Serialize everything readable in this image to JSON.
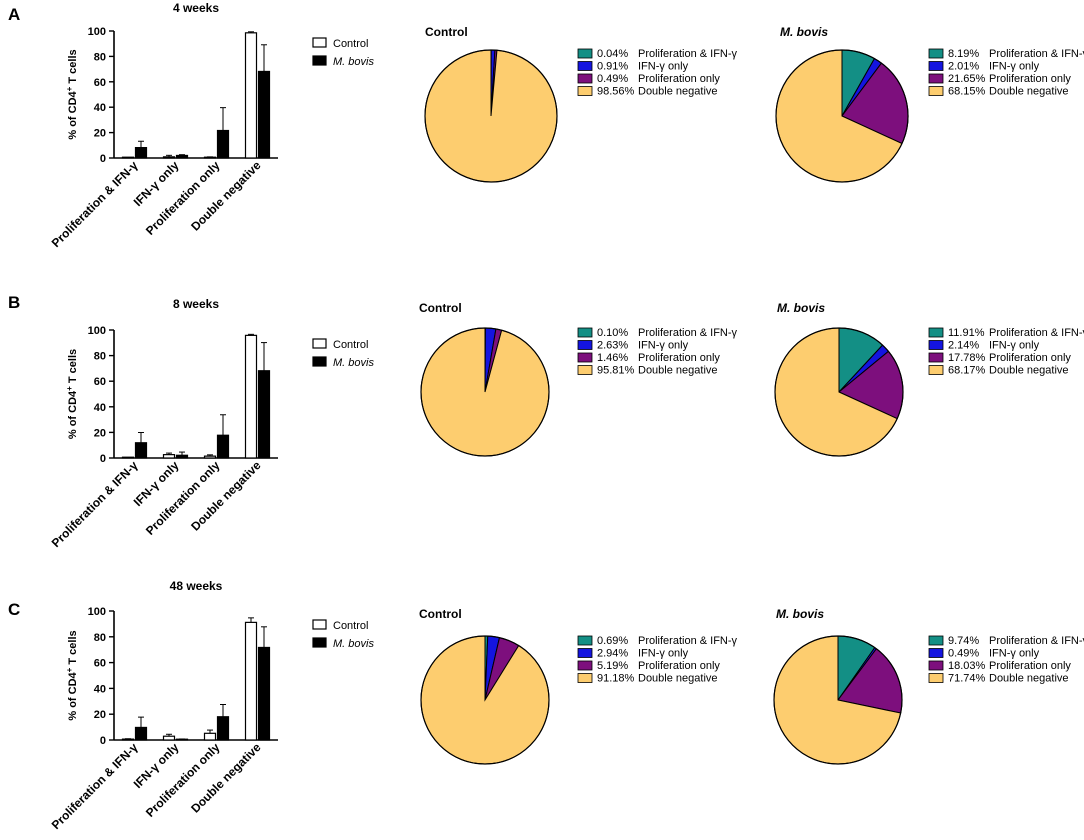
{
  "colors": {
    "control_bar": "#ffffff",
    "mbovis_bar": "#000000",
    "prolif_ifn": "#138f85",
    "ifn_only": "#1414e0",
    "prolif_only": "#7d0f7d",
    "double_neg": "#fdcd6f"
  },
  "chart_data": [
    {
      "panel": "A",
      "type": "bar",
      "title": "4 weeks",
      "ylabel": "% of CD4+ T cells",
      "ylabel_main": "% of CD4",
      "ylabel_sup": "+",
      "ylabel_tail": " T cells",
      "ylim": [
        0,
        100
      ],
      "yticks": [
        "0",
        "20",
        "40",
        "60",
        "80",
        "100"
      ],
      "categories": [
        "Proliferation & IFN-γ",
        "IFN-γ only",
        "Proliferation only",
        "Double negative"
      ],
      "series": [
        {
          "name": "Control",
          "values": [
            0.04,
            0.91,
            0.49,
            98.56
          ],
          "errors": [
            0.1,
            1.2,
            0.4,
            0.8
          ]
        },
        {
          "name": "M. bovis",
          "values": [
            8.19,
            2.01,
            21.65,
            68.15
          ],
          "errors": [
            5,
            0.6,
            18,
            21
          ]
        }
      ],
      "legend": [
        "Control",
        "M. bovis"
      ]
    },
    {
      "panel": "A",
      "type": "pie",
      "title": "Control",
      "labels": [
        "Proliferation & IFN-γ",
        "IFN-γ only",
        "Proliferation only",
        "Double negative"
      ],
      "values": [
        0.04,
        0.91,
        0.49,
        98.56
      ],
      "percent_labels": [
        "0.04%",
        "0.91%",
        "0.49%",
        "98.56%"
      ]
    },
    {
      "panel": "A",
      "type": "pie",
      "title": "M. bovis",
      "labels": [
        "Proliferation & IFN-γ",
        "IFN-γ only",
        "Proliferation only",
        "Double negative"
      ],
      "values": [
        8.19,
        2.01,
        21.65,
        68.15
      ],
      "percent_labels": [
        "8.19%",
        "2.01%",
        "21.65%",
        "68.15%"
      ]
    },
    {
      "panel": "B",
      "type": "bar",
      "title": "8 weeks",
      "ylabel": "% of CD4+ T cells",
      "ylabel_main": "% of CD4",
      "ylabel_sup": "+",
      "ylabel_tail": " T cells",
      "ylim": [
        0,
        100
      ],
      "yticks": [
        "0",
        "20",
        "40",
        "60",
        "80",
        "100"
      ],
      "categories": [
        "Proliferation & IFN-γ",
        "IFN-γ only",
        "Proliferation only",
        "Double negative"
      ],
      "series": [
        {
          "name": "Control",
          "values": [
            0.1,
            2.63,
            1.46,
            95.81
          ],
          "errors": [
            0.1,
            1.2,
            1,
            0.8
          ]
        },
        {
          "name": "M. bovis",
          "values": [
            11.91,
            2.14,
            17.78,
            68.17
          ],
          "errors": [
            8,
            2.5,
            16,
            22
          ]
        }
      ],
      "legend": [
        "Control",
        "M. bovis"
      ]
    },
    {
      "panel": "B",
      "type": "pie",
      "title": "Control",
      "labels": [
        "Proliferation & IFN-γ",
        "IFN-γ only",
        "Proliferation only",
        "Double negative"
      ],
      "values": [
        0.1,
        2.63,
        1.46,
        95.81
      ],
      "percent_labels": [
        "0.10%",
        "2.63%",
        "1.46%",
        "95.81%"
      ]
    },
    {
      "panel": "B",
      "type": "pie",
      "title": "M. bovis",
      "labels": [
        "Proliferation & IFN-γ",
        "IFN-γ only",
        "Proliferation only",
        "Double negative"
      ],
      "values": [
        11.91,
        2.14,
        17.78,
        68.17
      ],
      "percent_labels": [
        "11.91%",
        "2.14%",
        "17.78%",
        "68.17%"
      ]
    },
    {
      "panel": "C",
      "type": "bar",
      "title": "48 weeks",
      "ylabel": "% of CD4+ T cells",
      "ylabel_main": "% of CD4",
      "ylabel_sup": "+",
      "ylabel_tail": " T cells",
      "ylim": [
        0,
        100
      ],
      "yticks": [
        "0",
        "20",
        "40",
        "60",
        "80",
        "100"
      ],
      "categories": [
        "Proliferation & IFN-γ",
        "IFN-γ only",
        "Proliferation only",
        "Double negative"
      ],
      "series": [
        {
          "name": "Control",
          "values": [
            0.69,
            2.94,
            5.19,
            91.18
          ],
          "errors": [
            0.3,
            1.5,
            2.5,
            3.5
          ]
        },
        {
          "name": "M. bovis",
          "values": [
            9.74,
            0.49,
            18.03,
            71.74
          ],
          "errors": [
            8,
            0.3,
            9.5,
            16
          ]
        }
      ],
      "legend": [
        "Control",
        "M. bovis"
      ]
    },
    {
      "panel": "C",
      "type": "pie",
      "title": "Control",
      "labels": [
        "Proliferation & IFN-γ",
        "IFN-γ only",
        "Proliferation only",
        "Double negative"
      ],
      "values": [
        0.69,
        2.94,
        5.19,
        91.18
      ],
      "percent_labels": [
        "0.69%",
        "2.94%",
        "5.19%",
        "91.18%"
      ]
    },
    {
      "panel": "C",
      "type": "pie",
      "title": "M. bovis",
      "labels": [
        "Proliferation & IFN-γ",
        "IFN-γ only",
        "Proliferation only",
        "Double negative"
      ],
      "values": [
        9.74,
        0.49,
        18.03,
        71.74
      ],
      "percent_labels": [
        "9.74%",
        "0.49%",
        "18.03%",
        "71.74%"
      ]
    }
  ]
}
